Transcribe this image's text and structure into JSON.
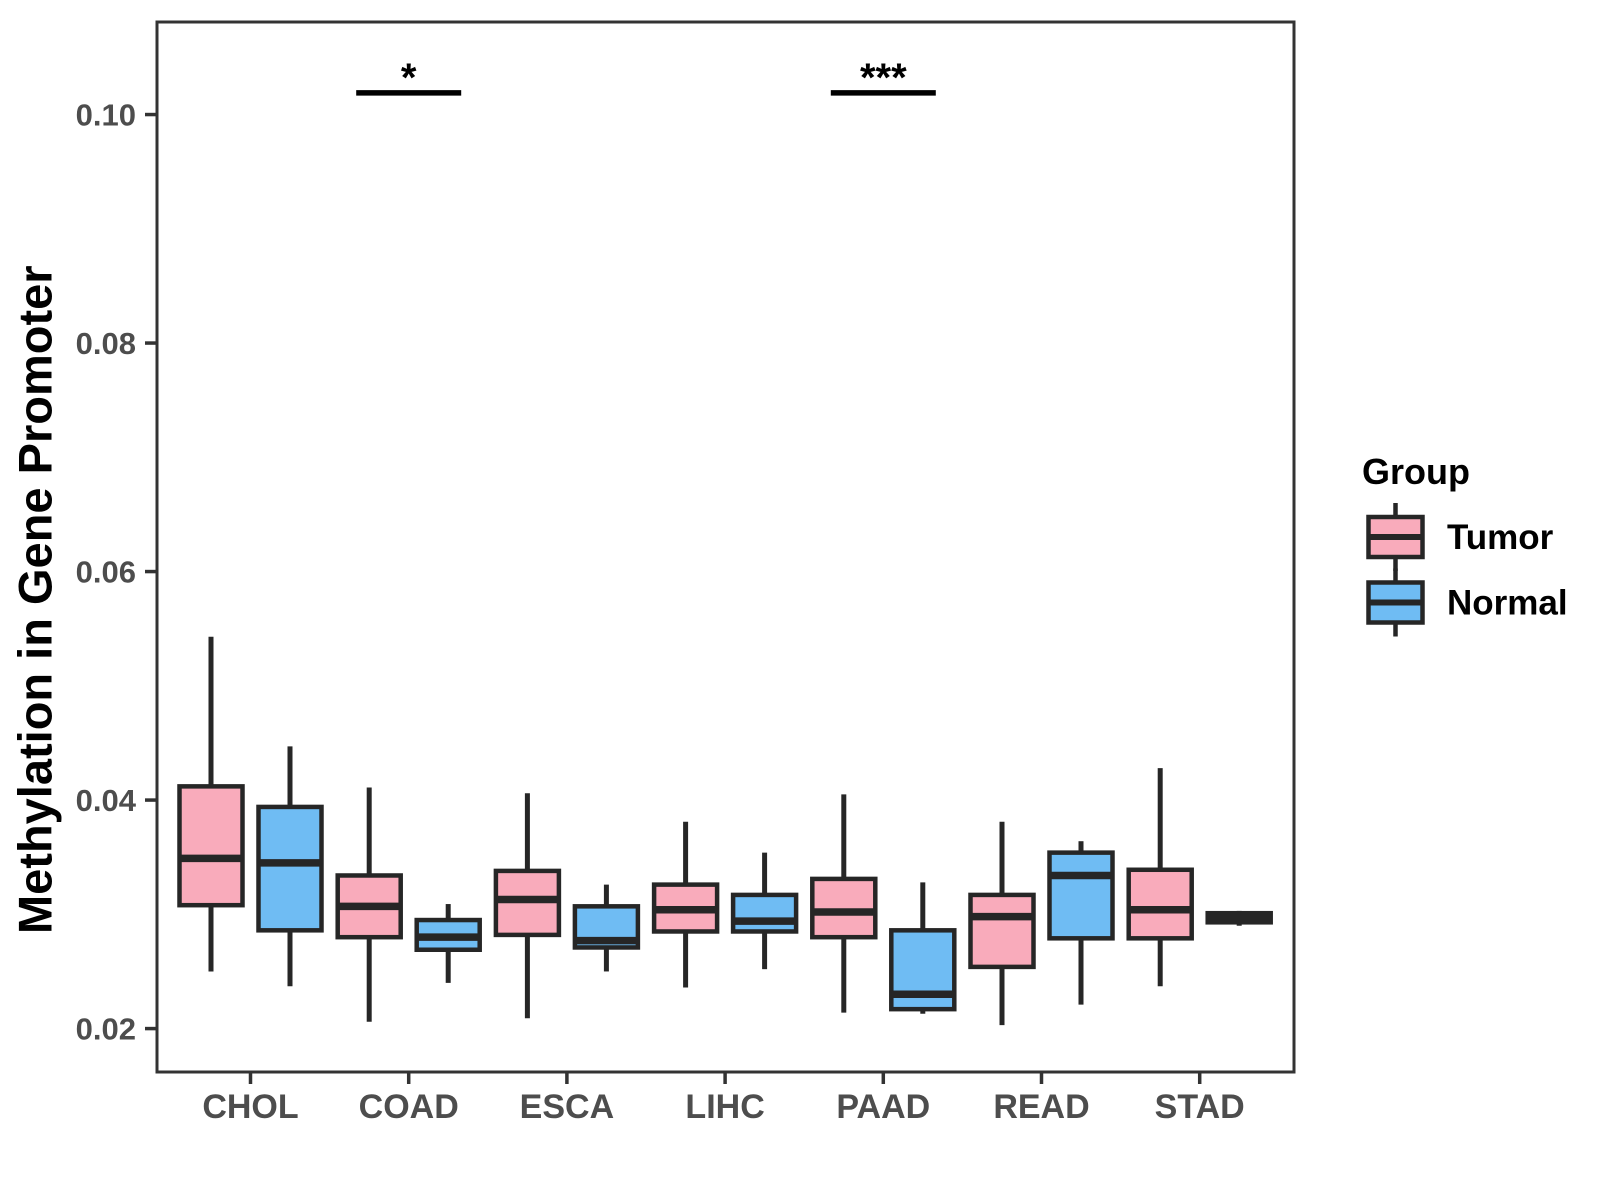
{
  "chart_data": {
    "type": "boxplot",
    "title": "",
    "xlabel": "",
    "ylabel": "Methylation in Gene Promoter",
    "categories": [
      "CHOL",
      "COAD",
      "ESCA",
      "LIHC",
      "PAAD",
      "READ",
      "STAD"
    ],
    "y_ticks": [
      0.02,
      0.04,
      0.06,
      0.08,
      0.1
    ],
    "ylim": [
      0.0162,
      0.1081
    ],
    "grid": false,
    "legend": {
      "title": "Group",
      "position": "right",
      "entries": [
        {
          "label": "Tumor",
          "color": "#F9ABBB"
        },
        {
          "label": "Normal",
          "color": "#6FBCF3"
        }
      ]
    },
    "series": [
      {
        "name": "Tumor",
        "color": "#F9ABBB",
        "boxes": [
          {
            "category": "CHOL",
            "whisker_low": 0.025,
            "q1": 0.0308,
            "median": 0.0349,
            "q3": 0.0412,
            "whisker_high": 0.0543
          },
          {
            "category": "COAD",
            "whisker_low": 0.0206,
            "q1": 0.028,
            "median": 0.0307,
            "q3": 0.0334,
            "whisker_high": 0.0411
          },
          {
            "category": "ESCA",
            "whisker_low": 0.0209,
            "q1": 0.0282,
            "median": 0.0313,
            "q3": 0.0338,
            "whisker_high": 0.0406
          },
          {
            "category": "LIHC",
            "whisker_low": 0.0236,
            "q1": 0.0285,
            "median": 0.0304,
            "q3": 0.0326,
            "whisker_high": 0.0381
          },
          {
            "category": "PAAD",
            "whisker_low": 0.0214,
            "q1": 0.028,
            "median": 0.0302,
            "q3": 0.0331,
            "whisker_high": 0.0405
          },
          {
            "category": "READ",
            "whisker_low": 0.0203,
            "q1": 0.0254,
            "median": 0.0298,
            "q3": 0.0317,
            "whisker_high": 0.0381
          },
          {
            "category": "STAD",
            "whisker_low": 0.0237,
            "q1": 0.0279,
            "median": 0.0304,
            "q3": 0.0339,
            "whisker_high": 0.0428
          }
        ]
      },
      {
        "name": "Normal",
        "color": "#6FBCF3",
        "boxes": [
          {
            "category": "CHOL",
            "whisker_low": 0.0237,
            "q1": 0.0286,
            "median": 0.0345,
            "q3": 0.0394,
            "whisker_high": 0.0447
          },
          {
            "category": "COAD",
            "whisker_low": 0.024,
            "q1": 0.0269,
            "median": 0.028,
            "q3": 0.0295,
            "whisker_high": 0.0309
          },
          {
            "category": "ESCA",
            "whisker_low": 0.025,
            "q1": 0.0271,
            "median": 0.0277,
            "q3": 0.0307,
            "whisker_high": 0.0326
          },
          {
            "category": "LIHC",
            "whisker_low": 0.0252,
            "q1": 0.0285,
            "median": 0.0294,
            "q3": 0.0317,
            "whisker_high": 0.0354
          },
          {
            "category": "PAAD",
            "whisker_low": 0.0213,
            "q1": 0.0217,
            "median": 0.023,
            "q3": 0.0286,
            "whisker_high": 0.0328
          },
          {
            "category": "READ",
            "whisker_low": 0.0221,
            "q1": 0.0279,
            "median": 0.0334,
            "q3": 0.0354,
            "whisker_high": 0.0364
          },
          {
            "category": "STAD",
            "whisker_low": 0.029,
            "q1": 0.0293,
            "median": 0.0297,
            "q3": 0.0301,
            "whisker_high": 0.0303
          }
        ]
      }
    ],
    "significance": [
      {
        "category": "COAD",
        "label": "*",
        "y": 0.1019
      },
      {
        "category": "PAAD",
        "label": "***",
        "y": 0.1019
      }
    ],
    "style": {
      "box_border": "#262626",
      "panel_border": "#333333",
      "axis_text": "#4D4D4D",
      "text": "#000000",
      "background": "#FFFFFF"
    }
  }
}
